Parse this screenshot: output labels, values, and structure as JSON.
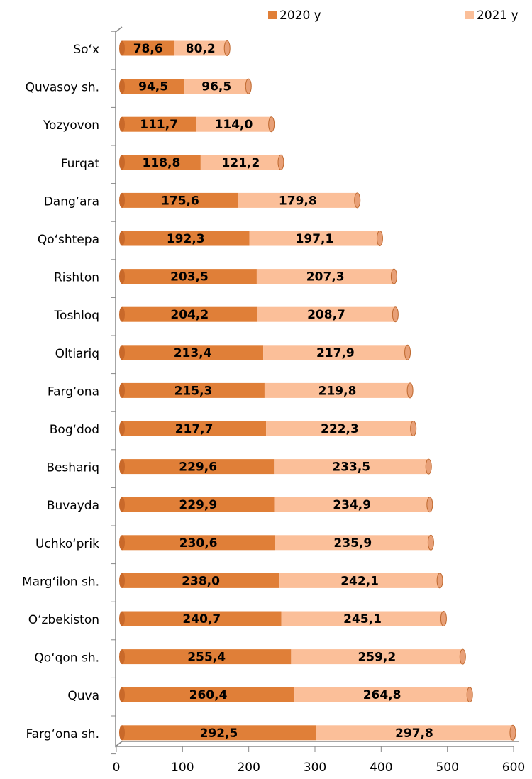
{
  "chart_data": {
    "type": "stacked_bar_horizontal",
    "categories": [
      "So‘x",
      "Quvasoy sh.",
      "Yozyovon",
      "Furqat",
      "Dang‘ara",
      "Qo‘shtepa",
      "Rishton",
      "Toshloq",
      "Oltiariq",
      "Farg‘ona",
      "Bog‘dod",
      "Beshariq",
      "Buvayda",
      "Uchko‘prik",
      "Marg‘ilon sh.",
      "O‘zbekiston",
      "Qo‘qon sh.",
      "Quva",
      "Farg‘ona sh."
    ],
    "series": [
      {
        "name": "2020 y",
        "color": "#e07f38",
        "values": [
          78.6,
          94.5,
          111.7,
          118.8,
          175.6,
          192.3,
          203.5,
          204.2,
          213.4,
          215.3,
          217.7,
          229.6,
          229.9,
          230.6,
          238.0,
          240.7,
          255.4,
          260.4,
          292.5
        ],
        "value_labels": [
          "78,6",
          "94,5",
          "111,7",
          "118,8",
          "175,6",
          "192,3",
          "203,5",
          "204,2",
          "213,4",
          "215,3",
          "217,7",
          "229,6",
          "229,9",
          "230,6",
          "238,0",
          "240,7",
          "255,4",
          "260,4",
          "292,5"
        ]
      },
      {
        "name": "2021 y",
        "color": "#fbbf99",
        "values": [
          80.2,
          96.5,
          114.0,
          121.2,
          179.8,
          197.1,
          207.3,
          208.7,
          217.9,
          219.8,
          222.3,
          233.5,
          234.9,
          235.9,
          242.1,
          245.1,
          259.2,
          264.8,
          297.8
        ],
        "value_labels": [
          "80,2",
          "96,5",
          "114,0",
          "121,2",
          "179,8",
          "197,1",
          "207,3",
          "208,7",
          "217,9",
          "219,8",
          "222,3",
          "233,5",
          "234,9",
          "235,9",
          "242,1",
          "245,1",
          "259,2",
          "264,8",
          "297,8"
        ]
      }
    ],
    "xlim": [
      0,
      600
    ],
    "xticks": [
      0,
      100,
      200,
      300,
      400,
      500,
      600
    ],
    "legend": "top"
  }
}
